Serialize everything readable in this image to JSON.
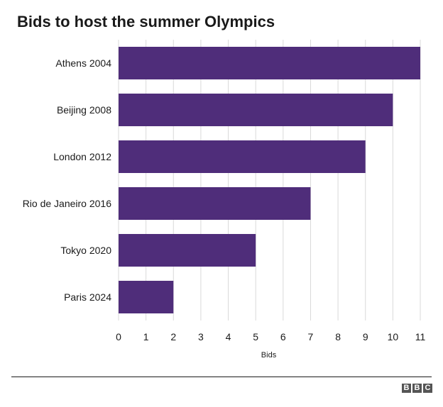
{
  "chart_data": {
    "type": "bar",
    "orientation": "horizontal",
    "title": "Bids to host the summer Olympics",
    "categories": [
      "Athens 2004",
      "Beijing 2008",
      "London 2012",
      "Rio de Janeiro 2016",
      "Tokyo 2020",
      "Paris 2024"
    ],
    "values": [
      11,
      10,
      9,
      7,
      5,
      2
    ],
    "xlabel": "Bids",
    "ylabel": "",
    "xlim": [
      0,
      11
    ],
    "xticks": [
      0,
      1,
      2,
      3,
      4,
      5,
      6,
      7,
      8,
      9,
      10,
      11
    ],
    "grid": true,
    "bar_color": "#4f2d7a",
    "grid_color": "#d9d9d9"
  },
  "footer": {
    "logo_letters": [
      "B",
      "B",
      "C"
    ]
  }
}
